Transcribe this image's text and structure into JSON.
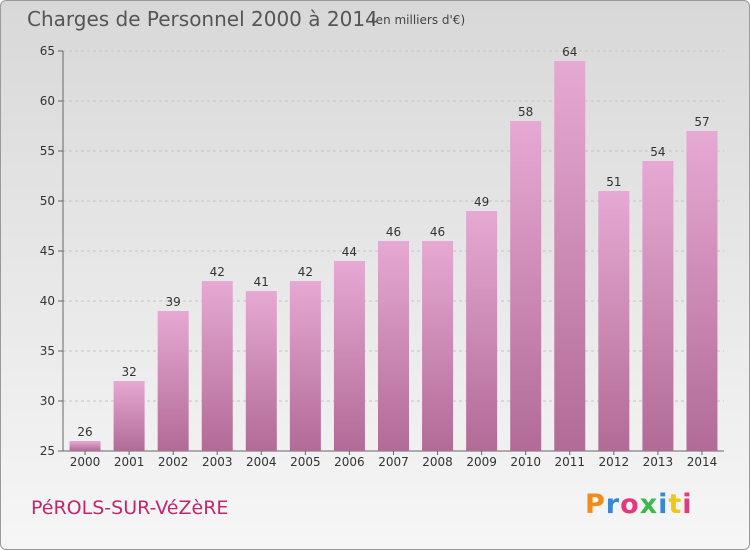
{
  "header": {
    "title": "Charges de Personnel 2000 à 2014",
    "subtitle": "(en milliers d'€)"
  },
  "footer": {
    "place": "PéROLS-SUR-VéZèRE",
    "logo": "Proxiti"
  },
  "colors": {
    "bar_top": "#e6a9d3",
    "bar_bottom": "#b16b96",
    "place_text": "#c0276e",
    "logo_letters": [
      "#f08c1a",
      "#3a88d0",
      "#e43a7c",
      "#3cb94a",
      "#3a88d0",
      "#f0c61a",
      "#e43a7c"
    ]
  },
  "chart_data": {
    "type": "bar",
    "title": "Charges de Personnel 2000 à 2014",
    "subtitle": "(en milliers d'€)",
    "categories": [
      "2000",
      "2001",
      "2002",
      "2003",
      "2004",
      "2005",
      "2006",
      "2007",
      "2008",
      "2009",
      "2010",
      "2011",
      "2012",
      "2013",
      "2014"
    ],
    "values": [
      26,
      32,
      39,
      42,
      41,
      42,
      44,
      46,
      46,
      49,
      58,
      64,
      51,
      54,
      57
    ],
    "ylim": [
      25,
      65
    ],
    "yticks": [
      25,
      30,
      35,
      40,
      45,
      50,
      55,
      60,
      65
    ],
    "grid": true,
    "data_labels": true
  }
}
